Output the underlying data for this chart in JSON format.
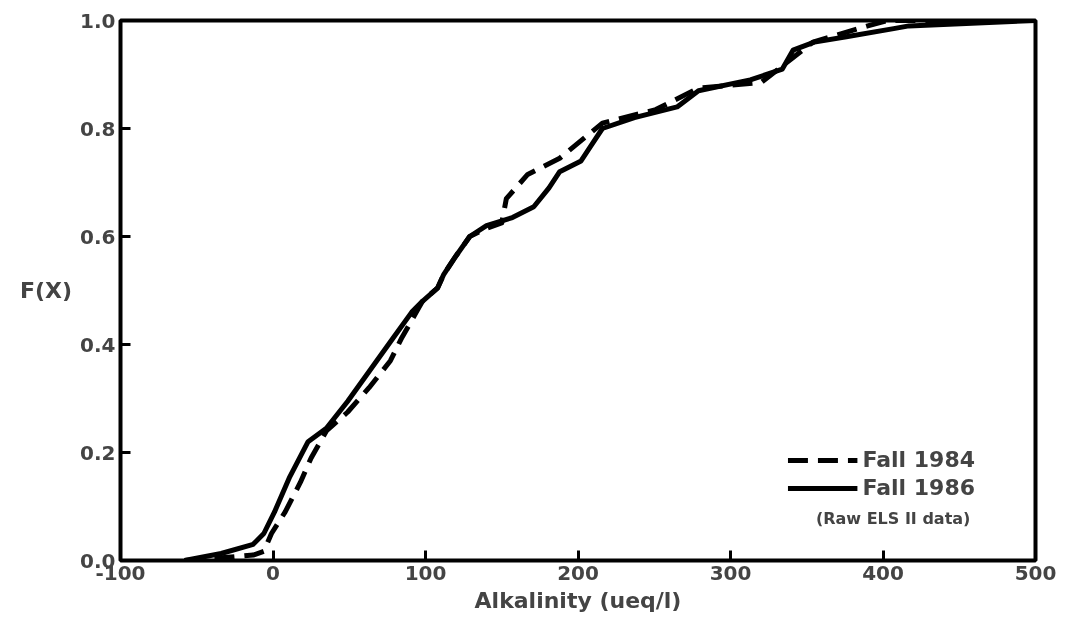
{
  "chart_data": {
    "type": "line",
    "xlabel": "Alkalinity (ueq/l)",
    "ylabel": "F(X)",
    "xlim": [
      -100,
      500
    ],
    "ylim": [
      0,
      1
    ],
    "xticks": [
      -100,
      0,
      100,
      200,
      300,
      400,
      500
    ],
    "yticks": [
      {
        "value": 0,
        "label": "0.0"
      },
      0.2,
      0.4,
      0.6,
      0.8,
      {
        "value": 1,
        "label": "1.0"
      }
    ],
    "grid": false,
    "legend": "bottom right",
    "annotations": [
      "(Raw ELS II data)"
    ],
    "series": [
      {
        "name": "Fall 1984",
        "color": "#000000",
        "line_style": "dashed",
        "x": [
          -58,
          -34,
          -13,
          -6,
          -1,
          8,
          18,
          25,
          35,
          49,
          63,
          77,
          84,
          94,
          98,
          108,
          112,
          119,
          129,
          140,
          150,
          153,
          167,
          188,
          216,
          251,
          279,
          320,
          354,
          390,
          403,
          500
        ],
        "values": [
          0,
          0.005,
          0.01,
          0.017,
          0.05,
          0.09,
          0.145,
          0.19,
          0.24,
          0.275,
          0.32,
          0.37,
          0.41,
          0.46,
          0.48,
          0.505,
          0.53,
          0.56,
          0.6,
          0.615,
          0.625,
          0.67,
          0.715,
          0.745,
          0.81,
          0.835,
          0.875,
          0.885,
          0.96,
          0.99,
          1,
          1
        ]
      },
      {
        "name": "Fall 1986",
        "color": "#000000",
        "line_style": "solid",
        "x": [
          -58,
          -34,
          -13,
          -6,
          1,
          11,
          23,
          35,
          49,
          63,
          77,
          91,
          98,
          108,
          112,
          119,
          129,
          140,
          157,
          171,
          181,
          188,
          202,
          209,
          216,
          237,
          265,
          279,
          313,
          334,
          341,
          355,
          376,
          407,
          417,
          500
        ],
        "values": [
          0,
          0.013,
          0.03,
          0.05,
          0.09,
          0.155,
          0.22,
          0.245,
          0.295,
          0.35,
          0.405,
          0.46,
          0.48,
          0.505,
          0.53,
          0.56,
          0.6,
          0.62,
          0.635,
          0.655,
          0.69,
          0.72,
          0.74,
          0.77,
          0.8,
          0.82,
          0.84,
          0.87,
          0.89,
          0.91,
          0.945,
          0.96,
          0.97,
          0.985,
          0.99,
          1
        ]
      }
    ]
  }
}
